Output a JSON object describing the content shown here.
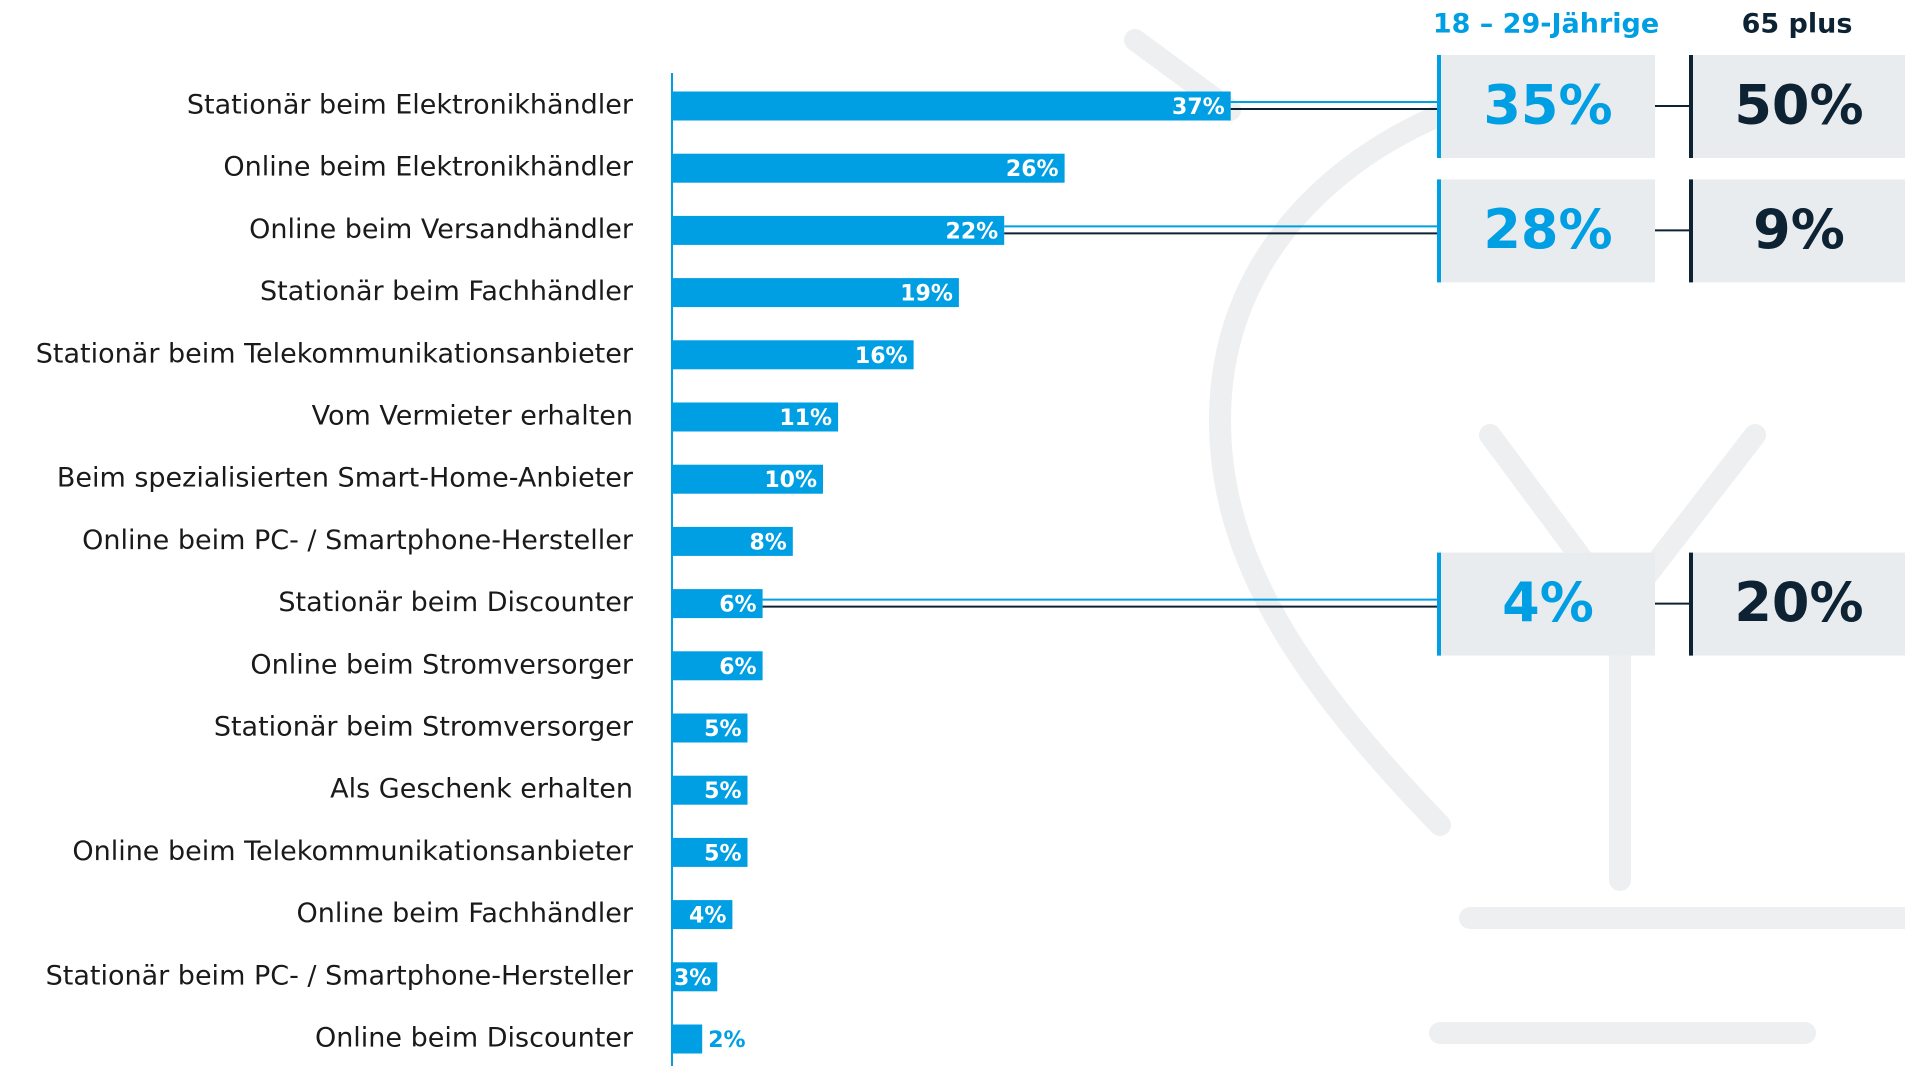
{
  "chart_data": {
    "type": "bar",
    "orientation": "horizontal",
    "categories": [
      "Stationär beim Elektronikhändler",
      "Online beim Elektronikhändler",
      "Online beim Versandhändler",
      "Stationär beim Fachhändler",
      "Stationär beim Telekommunikationsanbieter",
      "Vom Vermieter erhalten",
      "Beim spezialisierten Smart-Home-Anbieter",
      "Online beim PC- / Smartphone-Hersteller",
      "Stationär beim Discounter",
      "Online beim Stromversorger",
      "Stationär beim Stromversorger",
      "Als Geschenk erhalten",
      "Online beim Telekommunikationsanbieter",
      "Online beim Fachhändler",
      "Stationär beim PC- / Smartphone-Hersteller",
      "Online beim Discounter"
    ],
    "values": [
      37,
      26,
      22,
      19,
      16,
      11,
      10,
      8,
      6,
      6,
      5,
      5,
      5,
      4,
      3,
      2
    ],
    "value_labels": [
      "37%",
      "26%",
      "22%",
      "19%",
      "16%",
      "11%",
      "10%",
      "8%",
      "6%",
      "6%",
      "5%",
      "5%",
      "5%",
      "4%",
      "3%",
      "2%"
    ],
    "color": "#009ee3",
    "xlim": [
      0,
      50
    ],
    "comparison_series": [
      {
        "name": "18 – 29-Jährige",
        "color": "#009ee3",
        "values": [
          35,
          null,
          28,
          null,
          null,
          null,
          null,
          null,
          4,
          null,
          null,
          null,
          null,
          null,
          null,
          null
        ],
        "value_labels": [
          "35%",
          null,
          "28%",
          null,
          null,
          null,
          null,
          null,
          "4%",
          null,
          null,
          null,
          null,
          null,
          null,
          null
        ]
      },
      {
        "name": "65 plus",
        "color": "#0d2233",
        "values": [
          50,
          null,
          9,
          null,
          null,
          null,
          null,
          null,
          20,
          null,
          null,
          null,
          null,
          null,
          null,
          null
        ],
        "value_labels": [
          "50%",
          null,
          "9%",
          null,
          null,
          null,
          null,
          null,
          "20%",
          null,
          null,
          null,
          null,
          null,
          null,
          null
        ]
      }
    ]
  }
}
